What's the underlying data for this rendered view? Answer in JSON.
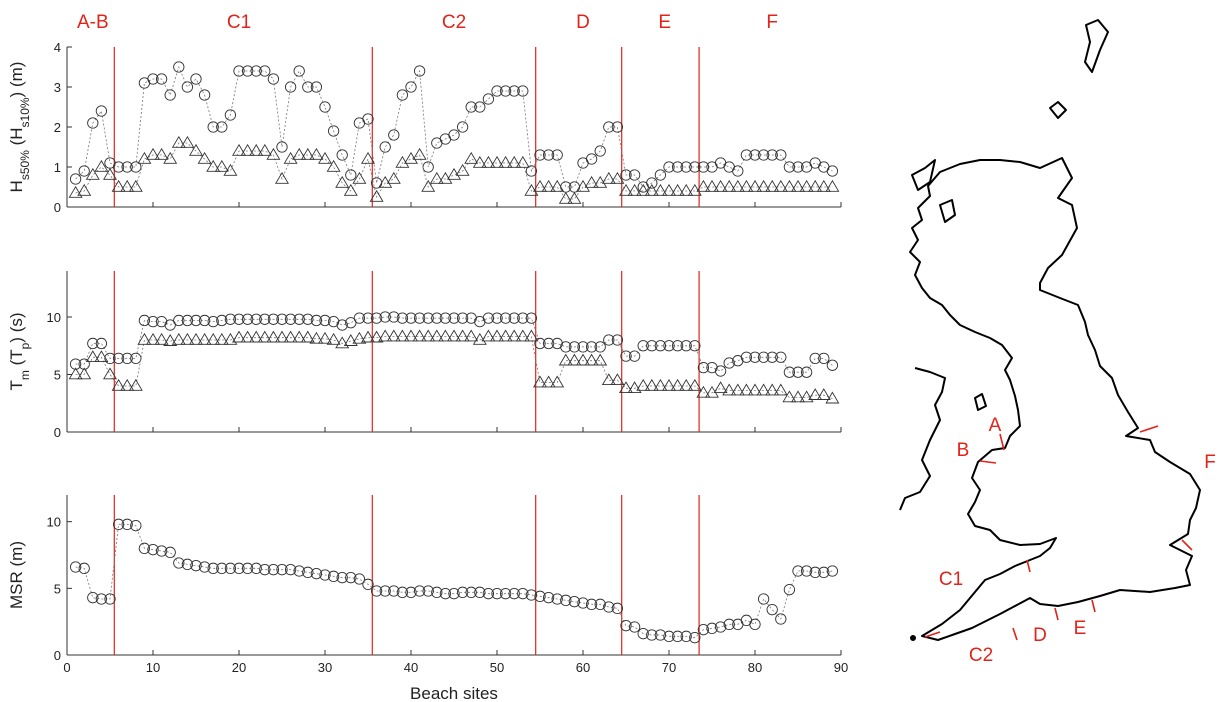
{
  "chart_data": [
    {
      "type": "scatter",
      "ylabel": "H_{s50%} (H_{s10%}) (m)",
      "ylim": [
        0,
        4
      ],
      "yticks": [
        0,
        1,
        2,
        3,
        4
      ],
      "xlim": [
        0,
        90
      ],
      "series": [
        {
          "marker": "circle",
          "x": [
            1,
            2,
            3,
            4,
            5,
            6,
            7,
            8,
            9,
            10,
            11,
            12,
            13,
            14,
            15,
            16,
            17,
            18,
            19,
            20,
            21,
            22,
            23,
            24,
            25,
            26,
            27,
            28,
            29,
            30,
            31,
            32,
            33,
            34,
            35,
            36,
            37,
            38,
            39,
            40,
            41,
            42,
            43,
            44,
            45,
            46,
            47,
            48,
            49,
            50,
            51,
            52,
            53,
            54,
            55,
            56,
            57,
            58,
            59,
            60,
            61,
            62,
            63,
            64,
            65,
            66,
            67,
            68,
            69,
            70,
            71,
            72,
            73,
            74,
            75,
            76,
            77,
            78,
            79,
            80,
            81,
            82,
            83,
            84,
            85,
            86,
            87,
            88,
            89
          ],
          "values": [
            0.7,
            0.9,
            2.1,
            2.4,
            1.1,
            1.0,
            1.0,
            1.0,
            3.1,
            3.2,
            3.2,
            2.8,
            3.5,
            3.0,
            3.2,
            2.8,
            2.0,
            2.0,
            2.3,
            3.4,
            3.4,
            3.4,
            3.4,
            3.2,
            1.5,
            3.0,
            3.4,
            3.0,
            3.0,
            2.5,
            1.9,
            1.3,
            0.8,
            2.1,
            2.2,
            0.6,
            1.5,
            1.8,
            2.8,
            3.0,
            3.4,
            1.0,
            1.6,
            1.7,
            1.8,
            2.0,
            2.5,
            2.5,
            2.7,
            2.9,
            2.9,
            2.9,
            2.9,
            0.9,
            1.3,
            1.3,
            1.3,
            0.5,
            0.5,
            1.1,
            1.2,
            1.4,
            2.0,
            2.0,
            0.8,
            0.8,
            0.5,
            0.6,
            0.8,
            1.0,
            1.0,
            1.0,
            1.0,
            1.0,
            1.0,
            1.1,
            1.0,
            0.9,
            1.3,
            1.3,
            1.3,
            1.3,
            1.3,
            1.0,
            1.0,
            1.0,
            1.1,
            1.0,
            0.9
          ]
        },
        {
          "marker": "triangle",
          "x": [
            1,
            2,
            3,
            4,
            5,
            6,
            7,
            8,
            9,
            10,
            11,
            12,
            13,
            14,
            15,
            16,
            17,
            18,
            19,
            20,
            21,
            22,
            23,
            24,
            25,
            26,
            27,
            28,
            29,
            30,
            31,
            32,
            33,
            34,
            35,
            36,
            37,
            38,
            39,
            40,
            41,
            42,
            43,
            44,
            45,
            46,
            47,
            48,
            49,
            50,
            51,
            52,
            53,
            54,
            55,
            56,
            57,
            58,
            59,
            60,
            61,
            62,
            63,
            64,
            65,
            66,
            67,
            68,
            69,
            70,
            71,
            72,
            73,
            74,
            75,
            76,
            77,
            78,
            79,
            80,
            81,
            82,
            83,
            84,
            85,
            86,
            87,
            88,
            89
          ],
          "values": [
            0.35,
            0.4,
            0.8,
            1.0,
            0.8,
            0.5,
            0.5,
            0.5,
            1.2,
            1.3,
            1.3,
            1.2,
            1.6,
            1.6,
            1.4,
            1.2,
            1.0,
            1.0,
            0.9,
            1.4,
            1.4,
            1.4,
            1.4,
            1.3,
            0.7,
            1.2,
            1.3,
            1.3,
            1.3,
            1.2,
            1.0,
            0.6,
            0.4,
            0.7,
            1.2,
            0.25,
            0.6,
            0.7,
            1.1,
            1.2,
            1.3,
            0.5,
            0.7,
            0.7,
            0.8,
            0.9,
            1.2,
            1.1,
            1.1,
            1.1,
            1.1,
            1.1,
            1.1,
            0.4,
            0.5,
            0.5,
            0.5,
            0.2,
            0.2,
            0.5,
            0.6,
            0.6,
            0.7,
            0.7,
            0.4,
            0.4,
            0.4,
            0.4,
            0.4,
            0.4,
            0.4,
            0.4,
            0.4,
            0.5,
            0.5,
            0.5,
            0.5,
            0.5,
            0.5,
            0.5,
            0.5,
            0.5,
            0.5,
            0.5,
            0.5,
            0.5,
            0.5,
            0.5,
            0.5
          ]
        }
      ]
    },
    {
      "type": "scatter",
      "ylabel": "T_m (T_p) (s)",
      "ylim": [
        0,
        14
      ],
      "yticks": [
        0,
        5,
        10
      ],
      "xlim": [
        0,
        90
      ],
      "series": [
        {
          "marker": "circle",
          "x": [
            1,
            2,
            3,
            4,
            5,
            6,
            7,
            8,
            9,
            10,
            11,
            12,
            13,
            14,
            15,
            16,
            17,
            18,
            19,
            20,
            21,
            22,
            23,
            24,
            25,
            26,
            27,
            28,
            29,
            30,
            31,
            32,
            33,
            34,
            35,
            36,
            37,
            38,
            39,
            40,
            41,
            42,
            43,
            44,
            45,
            46,
            47,
            48,
            49,
            50,
            51,
            52,
            53,
            54,
            55,
            56,
            57,
            58,
            59,
            60,
            61,
            62,
            63,
            64,
            65,
            66,
            67,
            68,
            69,
            70,
            71,
            72,
            73,
            74,
            75,
            76,
            77,
            78,
            79,
            80,
            81,
            82,
            83,
            84,
            85,
            86,
            87,
            88,
            89
          ],
          "values": [
            5.9,
            5.9,
            7.7,
            7.7,
            6.4,
            6.4,
            6.4,
            6.4,
            9.7,
            9.6,
            9.6,
            9.3,
            9.7,
            9.7,
            9.7,
            9.7,
            9.6,
            9.7,
            9.8,
            9.8,
            9.8,
            9.8,
            9.8,
            9.8,
            9.8,
            9.8,
            9.8,
            9.8,
            9.7,
            9.7,
            9.6,
            9.3,
            9.5,
            9.9,
            9.9,
            9.9,
            10.0,
            10.0,
            9.9,
            9.9,
            9.9,
            9.9,
            9.9,
            9.9,
            9.9,
            9.9,
            9.9,
            9.6,
            9.9,
            9.9,
            9.9,
            9.9,
            9.9,
            9.9,
            7.7,
            7.7,
            7.7,
            7.4,
            7.4,
            7.4,
            7.4,
            7.4,
            8.0,
            8.0,
            6.6,
            6.6,
            7.5,
            7.5,
            7.5,
            7.5,
            7.5,
            7.5,
            7.5,
            5.6,
            5.6,
            5.3,
            6.0,
            6.2,
            6.5,
            6.5,
            6.5,
            6.5,
            6.5,
            5.2,
            5.2,
            5.2,
            6.4,
            6.4,
            5.8
          ]
        },
        {
          "marker": "triangle",
          "x": [
            1,
            2,
            3,
            4,
            5,
            6,
            7,
            8,
            9,
            10,
            11,
            12,
            13,
            14,
            15,
            16,
            17,
            18,
            19,
            20,
            21,
            22,
            23,
            24,
            25,
            26,
            27,
            28,
            29,
            30,
            31,
            32,
            33,
            34,
            35,
            36,
            37,
            38,
            39,
            40,
            41,
            42,
            43,
            44,
            45,
            46,
            47,
            48,
            49,
            50,
            51,
            52,
            53,
            54,
            55,
            56,
            57,
            58,
            59,
            60,
            61,
            62,
            63,
            64,
            65,
            66,
            67,
            68,
            69,
            70,
            71,
            72,
            73,
            74,
            75,
            76,
            77,
            78,
            79,
            80,
            81,
            82,
            83,
            84,
            85,
            86,
            87,
            88,
            89
          ],
          "values": [
            5.0,
            5.0,
            6.5,
            6.5,
            5.0,
            4.0,
            4.0,
            4.0,
            8.0,
            8.0,
            8.0,
            7.9,
            8.0,
            8.0,
            8.0,
            8.0,
            8.0,
            8.0,
            8.0,
            8.2,
            8.2,
            8.2,
            8.2,
            8.2,
            8.2,
            8.2,
            8.2,
            8.2,
            8.1,
            8.1,
            8.0,
            7.7,
            7.9,
            8.1,
            8.2,
            8.2,
            8.3,
            8.3,
            8.3,
            8.3,
            8.3,
            8.3,
            8.3,
            8.3,
            8.3,
            8.3,
            8.3,
            8.0,
            8.3,
            8.3,
            8.3,
            8.3,
            8.3,
            8.3,
            4.3,
            4.3,
            4.3,
            6.2,
            6.2,
            6.2,
            6.2,
            6.2,
            4.5,
            4.5,
            3.8,
            3.8,
            4.0,
            4.0,
            4.0,
            4.0,
            4.0,
            4.0,
            4.0,
            3.4,
            3.4,
            3.8,
            3.6,
            3.6,
            3.6,
            3.6,
            3.6,
            3.6,
            3.6,
            3.0,
            3.0,
            3.0,
            3.2,
            3.2,
            2.9
          ]
        }
      ]
    },
    {
      "type": "line",
      "ylabel": "MSR (m)",
      "xlabel": "Beach sites",
      "ylim": [
        0,
        12
      ],
      "yticks": [
        0,
        5,
        10
      ],
      "xlim": [
        0,
        90
      ],
      "xticks": [
        0,
        10,
        20,
        30,
        40,
        50,
        60,
        70,
        80,
        90
      ],
      "series": [
        {
          "marker": "circle",
          "x": [
            1,
            2,
            3,
            4,
            5,
            6,
            7,
            8,
            9,
            10,
            11,
            12,
            13,
            14,
            15,
            16,
            17,
            18,
            19,
            20,
            21,
            22,
            23,
            24,
            25,
            26,
            27,
            28,
            29,
            30,
            31,
            32,
            33,
            34,
            35,
            36,
            37,
            38,
            39,
            40,
            41,
            42,
            43,
            44,
            45,
            46,
            47,
            48,
            49,
            50,
            51,
            52,
            53,
            54,
            55,
            56,
            57,
            58,
            59,
            60,
            61,
            62,
            63,
            64,
            65,
            66,
            67,
            68,
            69,
            70,
            71,
            72,
            73,
            74,
            75,
            76,
            77,
            78,
            79,
            80,
            81,
            82,
            83,
            84,
            85,
            86,
            87,
            88,
            89
          ],
          "values": [
            6.6,
            6.5,
            4.3,
            4.2,
            4.2,
            9.8,
            9.8,
            9.7,
            8.0,
            7.9,
            7.8,
            7.7,
            6.9,
            6.8,
            6.7,
            6.6,
            6.5,
            6.5,
            6.5,
            6.5,
            6.5,
            6.5,
            6.4,
            6.4,
            6.4,
            6.4,
            6.3,
            6.2,
            6.1,
            6.0,
            5.9,
            5.8,
            5.8,
            5.7,
            5.3,
            4.8,
            4.8,
            4.8,
            4.7,
            4.7,
            4.8,
            4.8,
            4.7,
            4.6,
            4.6,
            4.7,
            4.7,
            4.7,
            4.6,
            4.6,
            4.6,
            4.6,
            4.6,
            4.5,
            4.4,
            4.3,
            4.2,
            4.1,
            4.0,
            3.9,
            3.8,
            3.8,
            3.6,
            3.5,
            2.2,
            2.1,
            1.6,
            1.5,
            1.5,
            1.4,
            1.4,
            1.4,
            1.3,
            1.9,
            2.0,
            2.1,
            2.3,
            2.3,
            2.6,
            2.3,
            4.2,
            3.4,
            2.7,
            4.9,
            6.3,
            6.3,
            6.2,
            6.2,
            6.3
          ]
        }
      ]
    }
  ],
  "segments": {
    "labels": [
      "A-B",
      "C1",
      "C2",
      "D",
      "E",
      "F"
    ],
    "label_positions": [
      3,
      20,
      45,
      60,
      69.5,
      82
    ],
    "boundaries": [
      5.5,
      35.5,
      54.5,
      64.5,
      73.5
    ]
  },
  "map": {
    "labels": [
      "A",
      "B",
      "C1",
      "C2",
      "D",
      "E",
      "F"
    ]
  }
}
